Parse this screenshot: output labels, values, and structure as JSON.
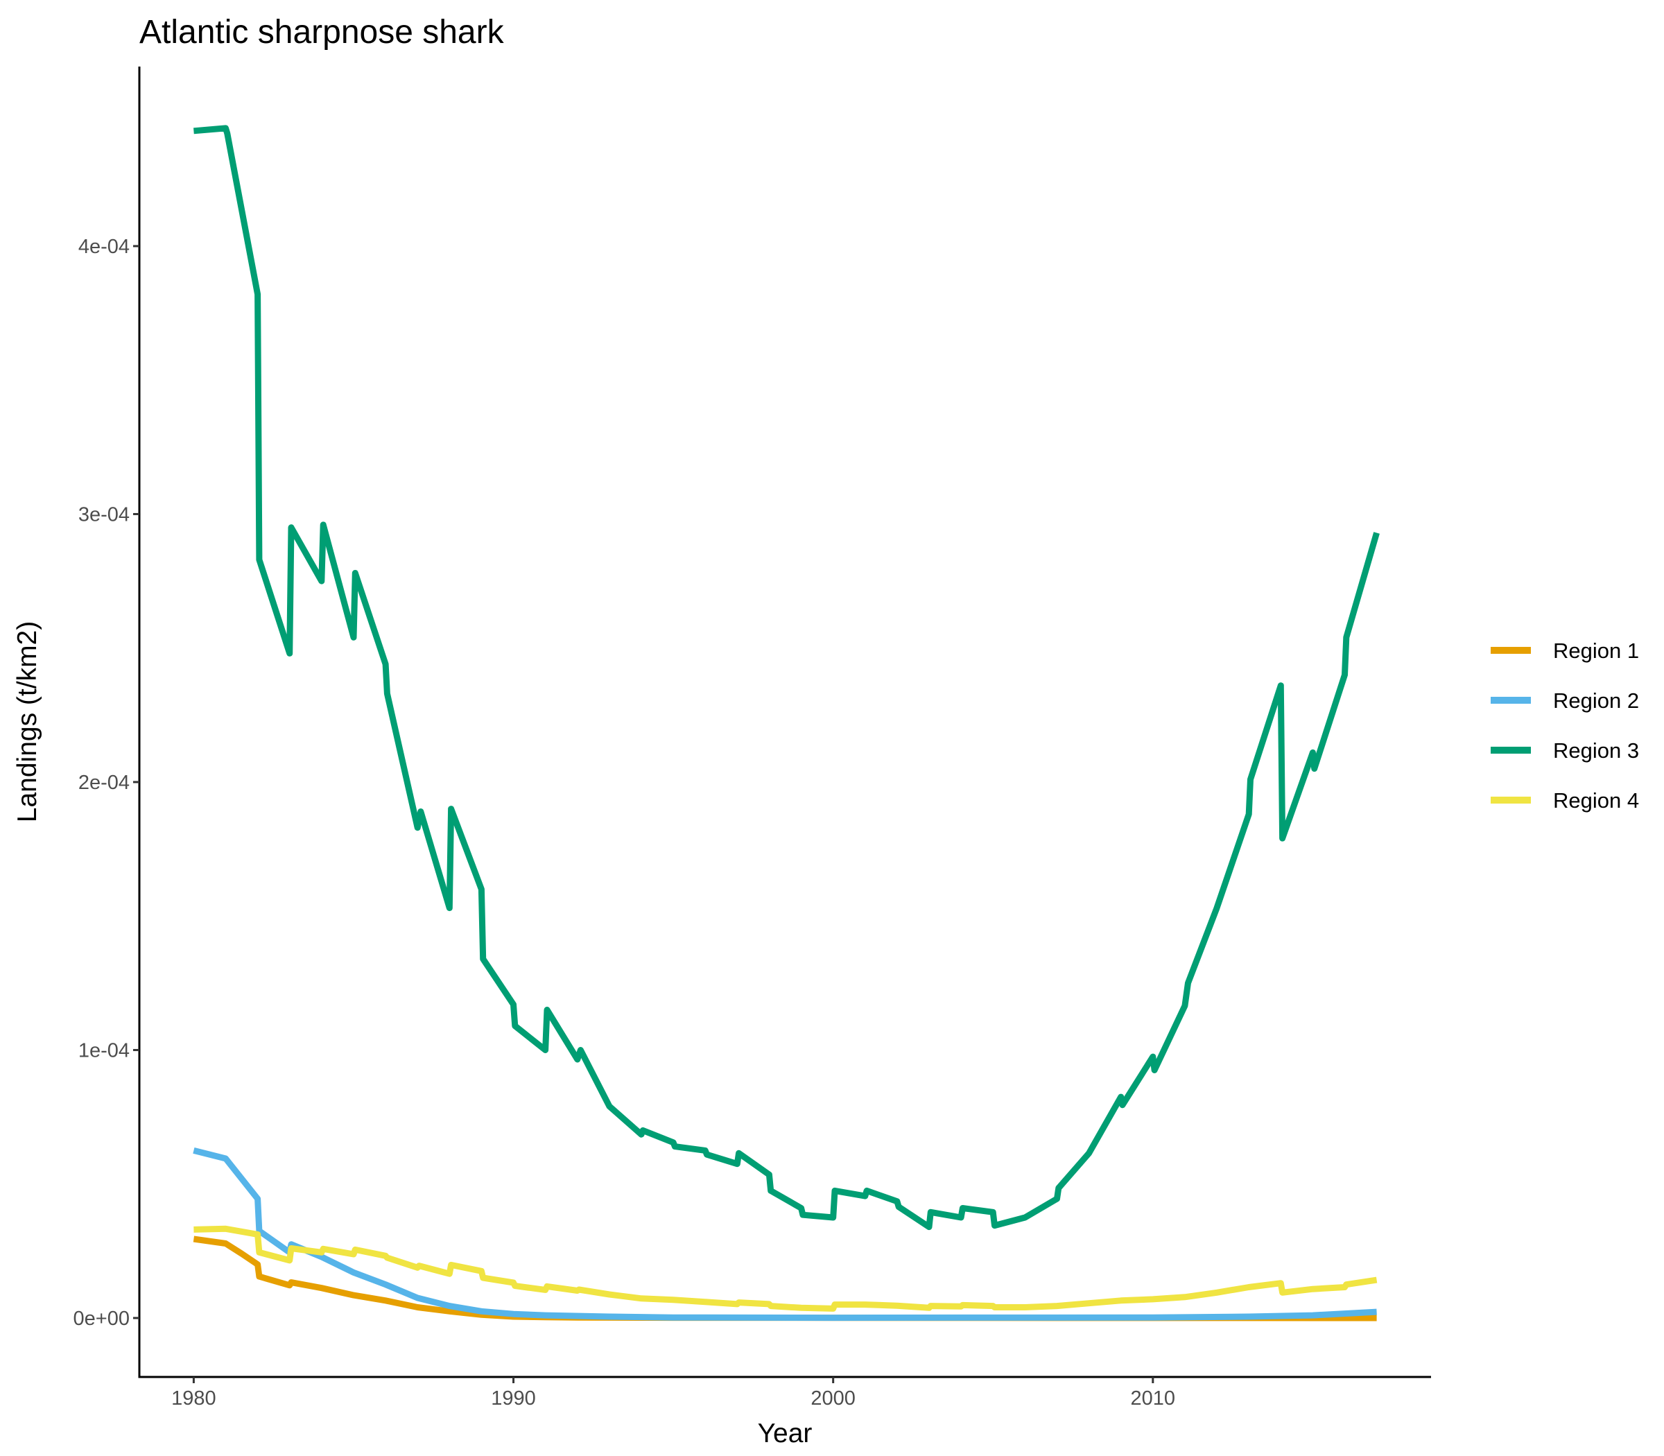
{
  "chart_data": {
    "type": "line",
    "title": "Atlantic sharpnose shark",
    "xlabel": "Year",
    "ylabel": "Landings (t/km2)",
    "xlim": [
      1978.3,
      2018.7
    ],
    "ylim": [
      -2.2e-05,
      0.000467
    ],
    "x_ticks": [
      1980,
      1990,
      2000,
      2010
    ],
    "x_tick_labels": [
      "1980",
      "1990",
      "2000",
      "2010"
    ],
    "y_ticks": [
      0,
      0.0001,
      0.0002,
      0.0003,
      0.0004
    ],
    "y_tick_labels": [
      "0e+00",
      "1e-04",
      "2e-04",
      "3e-04",
      "4e-04"
    ],
    "grid": false,
    "legend_position": "right",
    "series": [
      {
        "name": "Region 1",
        "color": "#E69F00",
        "points": [
          [
            1980,
            2.95e-05
          ],
          [
            1981,
            2.78e-05
          ],
          [
            1981.5,
            2.4e-05
          ],
          [
            1982,
            2e-05
          ],
          [
            1982.05,
            1.55e-05
          ],
          [
            1983,
            1.22e-05
          ],
          [
            1983.05,
            1.33e-05
          ],
          [
            1984,
            1.12e-05
          ],
          [
            1985,
            8.5e-06
          ],
          [
            1986,
            6.5e-06
          ],
          [
            1987,
            4e-06
          ],
          [
            1988,
            2.5e-06
          ],
          [
            1989,
            1.2e-06
          ],
          [
            1990,
            5e-07
          ],
          [
            1991,
            3e-07
          ],
          [
            1992,
            2e-07
          ],
          [
            1995,
            1e-07
          ],
          [
            2017,
            0
          ]
        ]
      },
      {
        "name": "Region 2",
        "color": "#56B4E9",
        "points": [
          [
            1980,
            6.25e-05
          ],
          [
            1981,
            5.95e-05
          ],
          [
            1982,
            4.45e-05
          ],
          [
            1982.05,
            3.25e-05
          ],
          [
            1983,
            2.45e-05
          ],
          [
            1983.05,
            2.75e-05
          ],
          [
            1984,
            2.28e-05
          ],
          [
            1985,
            1.7e-05
          ],
          [
            1986,
            1.25e-05
          ],
          [
            1987,
            7.5e-06
          ],
          [
            1988,
            4.5e-06
          ],
          [
            1989,
            2.5e-06
          ],
          [
            1990,
            1.5e-06
          ],
          [
            1991,
            1e-06
          ],
          [
            1993,
            5e-07
          ],
          [
            1995,
            2e-07
          ],
          [
            2000,
            1e-07
          ],
          [
            2010,
            2e-07
          ],
          [
            2013,
            5e-07
          ],
          [
            2015,
            1e-06
          ],
          [
            2017,
            2.3e-06
          ]
        ]
      },
      {
        "name": "Region 3",
        "color": "#009E73",
        "points": [
          [
            1980,
            0.000443
          ],
          [
            1981,
            0.000444
          ],
          [
            1981.05,
            0.000442
          ],
          [
            1982,
            0.000382
          ],
          [
            1982.05,
            0.000283
          ],
          [
            1983,
            0.000248
          ],
          [
            1983.05,
            0.000295
          ],
          [
            1984,
            0.000275
          ],
          [
            1984.05,
            0.000296
          ],
          [
            1985,
            0.000254
          ],
          [
            1985.05,
            0.000278
          ],
          [
            1986,
            0.000244
          ],
          [
            1986.05,
            0.000233
          ],
          [
            1987,
            0.000183
          ],
          [
            1987.1,
            0.000189
          ],
          [
            1988,
            0.000153
          ],
          [
            1988.05,
            0.00019
          ],
          [
            1989,
            0.00016
          ],
          [
            1989.05,
            0.000134
          ],
          [
            1990,
            0.000117
          ],
          [
            1990.05,
            0.000109
          ],
          [
            1991,
            0.0001
          ],
          [
            1991.05,
            0.000115
          ],
          [
            1992,
            9.65e-05
          ],
          [
            1992.1,
            0.0001
          ],
          [
            1993,
            7.9e-05
          ],
          [
            1994,
            6.85e-05
          ],
          [
            1994.05,
            7e-05
          ],
          [
            1995,
            6.55e-05
          ],
          [
            1995.05,
            6.4e-05
          ],
          [
            1996,
            6.25e-05
          ],
          [
            1996.05,
            6.1e-05
          ],
          [
            1997,
            5.75e-05
          ],
          [
            1997.05,
            6.15e-05
          ],
          [
            1998,
            5.35e-05
          ],
          [
            1998.05,
            4.75e-05
          ],
          [
            1999,
            4.1e-05
          ],
          [
            1999.05,
            3.85e-05
          ],
          [
            2000,
            3.75e-05
          ],
          [
            2000.05,
            4.75e-05
          ],
          [
            2001,
            4.55e-05
          ],
          [
            2001.05,
            4.75e-05
          ],
          [
            2002,
            4.35e-05
          ],
          [
            2002.05,
            4.15e-05
          ],
          [
            2003,
            3.4e-05
          ],
          [
            2003.05,
            3.95e-05
          ],
          [
            2004,
            3.75e-05
          ],
          [
            2004.05,
            4.1e-05
          ],
          [
            2005,
            3.95e-05
          ],
          [
            2005.05,
            3.45e-05
          ],
          [
            2006,
            3.75e-05
          ],
          [
            2007,
            4.45e-05
          ],
          [
            2007.05,
            4.85e-05
          ],
          [
            2008,
            6.15e-05
          ],
          [
            2009,
            8.25e-05
          ],
          [
            2009.05,
            7.95e-05
          ],
          [
            2010,
            9.75e-05
          ],
          [
            2010.05,
            9.25e-05
          ],
          [
            2011,
            0.0001165
          ],
          [
            2011.1,
            0.000125
          ],
          [
            2012,
            0.000153
          ],
          [
            2013,
            0.000188
          ],
          [
            2013.05,
            0.000201
          ],
          [
            2014,
            0.000236
          ],
          [
            2014.05,
            0.000179
          ],
          [
            2015,
            0.000211
          ],
          [
            2015.05,
            0.000205
          ],
          [
            2016,
            0.00024
          ],
          [
            2016.05,
            0.000254
          ],
          [
            2017,
            0.000293
          ]
        ]
      },
      {
        "name": "Region 4",
        "color": "#F0E442",
        "points": [
          [
            1980,
            3.3e-05
          ],
          [
            1981,
            3.33e-05
          ],
          [
            1982,
            3.12e-05
          ],
          [
            1982.05,
            2.45e-05
          ],
          [
            1983,
            2.15e-05
          ],
          [
            1983.05,
            2.6e-05
          ],
          [
            1984,
            2.45e-05
          ],
          [
            1984.05,
            2.58e-05
          ],
          [
            1985,
            2.38e-05
          ],
          [
            1985.05,
            2.55e-05
          ],
          [
            1986,
            2.32e-05
          ],
          [
            1986.05,
            2.25e-05
          ],
          [
            1987,
            1.88e-05
          ],
          [
            1987.05,
            1.95e-05
          ],
          [
            1988,
            1.65e-05
          ],
          [
            1988.05,
            1.98e-05
          ],
          [
            1989,
            1.75e-05
          ],
          [
            1989.05,
            1.5e-05
          ],
          [
            1990,
            1.32e-05
          ],
          [
            1990.05,
            1.2e-05
          ],
          [
            1991,
            1.05e-05
          ],
          [
            1991.05,
            1.18e-05
          ],
          [
            1992,
            1.02e-05
          ],
          [
            1992.05,
            1.06e-05
          ],
          [
            1993,
            8.8e-06
          ],
          [
            1994,
            7.3e-06
          ],
          [
            1995,
            6.8e-06
          ],
          [
            1996,
            6e-06
          ],
          [
            1997,
            5.2e-06
          ],
          [
            1997.05,
            5.8e-06
          ],
          [
            1998,
            5.2e-06
          ],
          [
            1998.05,
            4.5e-06
          ],
          [
            1999,
            3.8e-06
          ],
          [
            2000,
            3.5e-06
          ],
          [
            2000.05,
            5e-06
          ],
          [
            2001,
            5e-06
          ],
          [
            2002,
            4.6e-06
          ],
          [
            2003,
            3.8e-06
          ],
          [
            2003.05,
            4.5e-06
          ],
          [
            2004,
            4.3e-06
          ],
          [
            2004.05,
            4.8e-06
          ],
          [
            2005,
            4.5e-06
          ],
          [
            2005.05,
            4e-06
          ],
          [
            2006,
            4e-06
          ],
          [
            2007,
            4.5e-06
          ],
          [
            2008,
            5.5e-06
          ],
          [
            2009,
            6.5e-06
          ],
          [
            2010,
            7e-06
          ],
          [
            2011,
            7.8e-06
          ],
          [
            2012,
            9.5e-06
          ],
          [
            2013,
            1.15e-05
          ],
          [
            2014,
            1.3e-05
          ],
          [
            2014.05,
            9.5e-06
          ],
          [
            2015,
            1.08e-05
          ],
          [
            2016,
            1.15e-05
          ],
          [
            2016.05,
            1.25e-05
          ],
          [
            2017,
            1.42e-05
          ]
        ]
      }
    ]
  }
}
